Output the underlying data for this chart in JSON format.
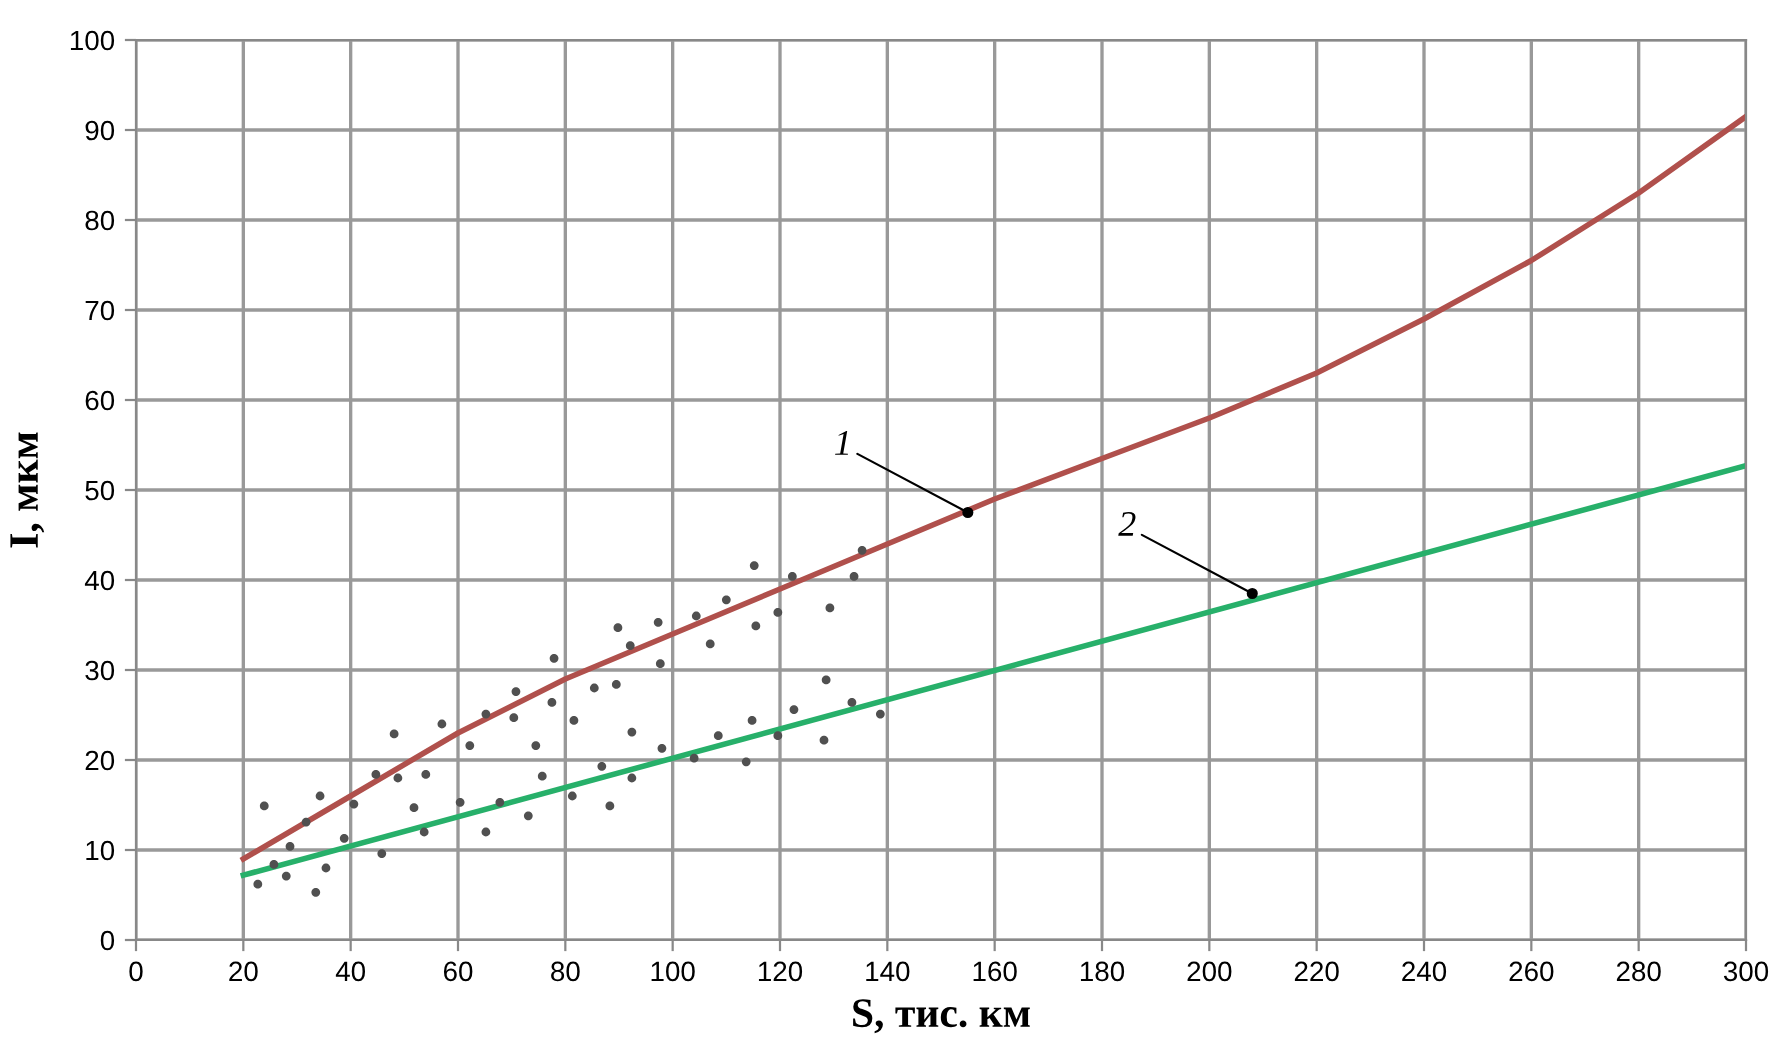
{
  "chart_data": {
    "type": "line",
    "xlabel": "S, тис. км",
    "ylabel": "I, мкм",
    "xlim": [
      0,
      300
    ],
    "ylim": [
      0,
      100
    ],
    "xticks": [
      0,
      20,
      40,
      60,
      80,
      100,
      120,
      140,
      160,
      180,
      200,
      220,
      240,
      260,
      280,
      300
    ],
    "yticks": [
      0,
      10,
      20,
      30,
      40,
      50,
      60,
      70,
      80,
      90,
      100
    ],
    "grid": true,
    "legend": false,
    "line_style": "solid",
    "series": [
      {
        "color": "#b0504c",
        "x": [
          20,
          40,
          60,
          80,
          100,
          120,
          140,
          160,
          180,
          200,
          220,
          240,
          260,
          280,
          300
        ],
        "values": [
          9,
          16,
          23,
          29,
          34,
          39,
          44,
          49,
          53.5,
          58,
          63,
          69,
          75.5,
          83,
          91.5
        ]
      },
      {
        "color": "#27b06a",
        "x": [
          20,
          300
        ],
        "values": [
          7.2,
          52.7
        ]
      },
      {
        "type": "scatter",
        "marker": "circle",
        "color": "#505050",
        "x": [
          23.9,
          28.7,
          22.7,
          25.7,
          28.0,
          31.7,
          34.3,
          33.5,
          35.4,
          38.8,
          40.6,
          44.7,
          48.1,
          48.8,
          45.8,
          51.8,
          53.7,
          54.0,
          57.0,
          62.2,
          60.4,
          65.2,
          65.2,
          67.8,
          70.4,
          70.8,
          73.1,
          74.5,
          75.7,
          77.5,
          77.9,
          81.3,
          81.6,
          85.4,
          88.3,
          86.8,
          89.5,
          89.8,
          92.1,
          92.4,
          92.4,
          97.3,
          97.7,
          98.0,
          104.4,
          107.0,
          104.0,
          108.5,
          110.0,
          113.7,
          114.8,
          115.2,
          115.5,
          119.6,
          119.6,
          122.3,
          122.6,
          128.2,
          128.6,
          129.3,
          133.4,
          133.8,
          135.3,
          138.7
        ],
        "values": [
          14.9,
          10.4,
          6.2,
          8.4,
          7.1,
          13.1,
          16.0,
          5.3,
          8.0,
          11.3,
          15.1,
          18.4,
          22.9,
          18.0,
          9.6,
          14.7,
          12.0,
          18.4,
          24.0,
          21.6,
          15.3,
          12.0,
          25.1,
          15.3,
          24.7,
          27.6,
          13.8,
          21.6,
          18.2,
          26.4,
          31.3,
          16.0,
          24.4,
          28.0,
          14.9,
          19.3,
          28.4,
          34.7,
          32.7,
          23.1,
          18.0,
          35.3,
          30.7,
          21.3,
          36.0,
          32.9,
          20.2,
          22.7,
          37.8,
          19.8,
          24.4,
          41.6,
          34.9,
          36.4,
          22.7,
          40.4,
          25.6,
          22.2,
          28.9,
          36.9,
          26.4,
          40.4,
          43.3,
          25.1
        ]
      }
    ],
    "annotations": [
      {
        "text": "1",
        "x": 155,
        "y": 47.5
      },
      {
        "text": "2",
        "x": 208,
        "y": 38.5
      }
    ]
  }
}
